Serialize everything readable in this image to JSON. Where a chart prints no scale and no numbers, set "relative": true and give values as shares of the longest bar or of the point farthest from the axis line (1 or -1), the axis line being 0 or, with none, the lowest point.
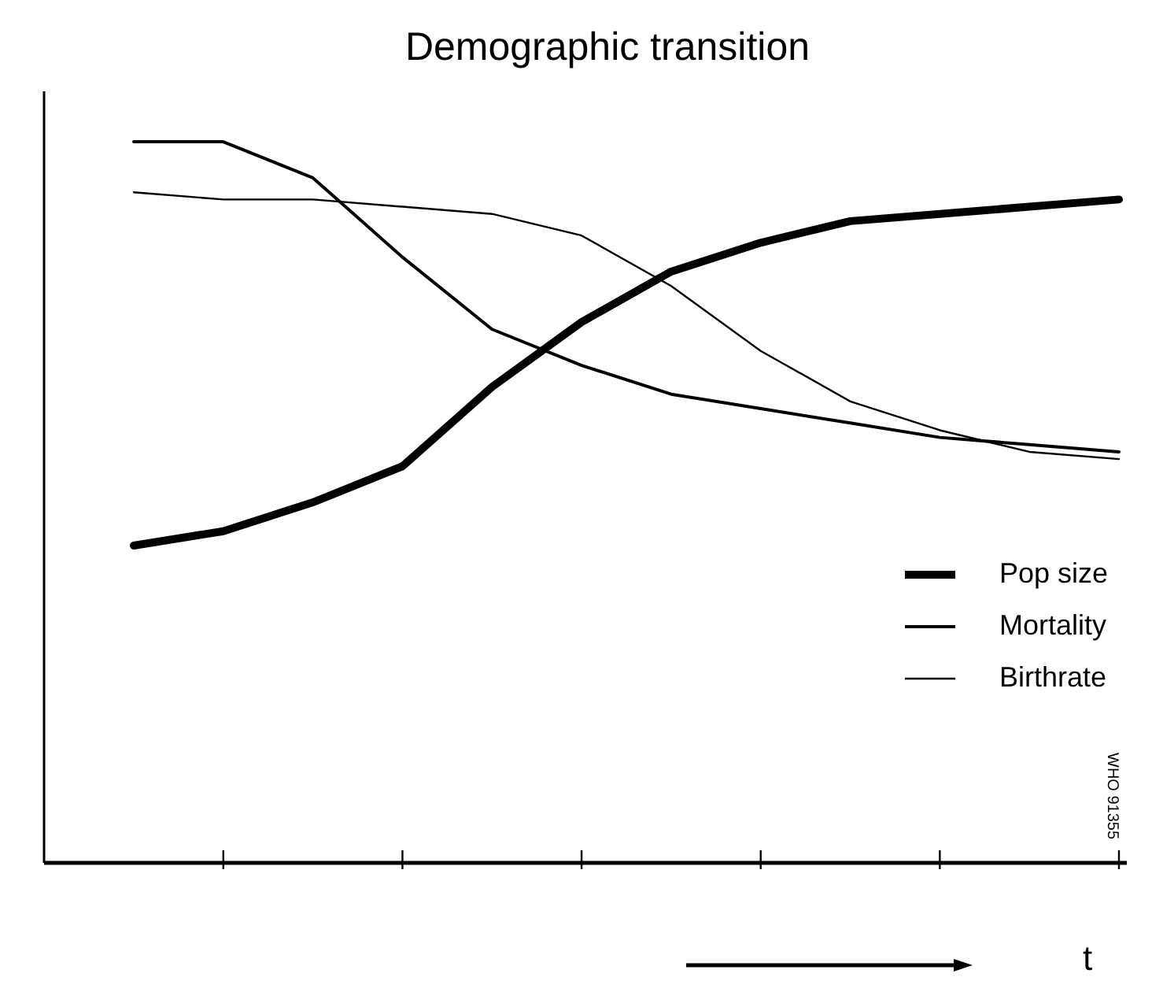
{
  "chart_data": {
    "type": "line",
    "title": "Demographic transition",
    "xlabel": "t",
    "relative": true,
    "categories": [
      null,
      null,
      null,
      null,
      null,
      null,
      null,
      null,
      null,
      null,
      null,
      null
    ],
    "series": [
      {
        "name": "Pop size",
        "color": "#000000",
        "values": [
          0.44,
          0.46,
          0.5,
          0.55,
          0.66,
          0.75,
          0.82,
          0.86,
          0.89,
          0.9,
          0.91,
          0.92
        ]
      },
      {
        "name": "Mortality",
        "color": "#000000",
        "values": [
          1,
          1,
          0.95,
          0.84,
          0.74,
          0.69,
          0.65,
          0.63,
          0.61,
          0.59,
          0.58,
          0.57
        ]
      },
      {
        "name": "Birthrate",
        "color": "#000000",
        "values": [
          0.93,
          0.92,
          0.92,
          0.91,
          0.9,
          0.87,
          0.8,
          0.71,
          0.64,
          0.6,
          0.57,
          0.56
        ]
      }
    ],
    "annotations": [
      "WHO 91355"
    ],
    "legend": "right",
    "grid": false,
    "marker": "none",
    "line_style": "solid"
  }
}
